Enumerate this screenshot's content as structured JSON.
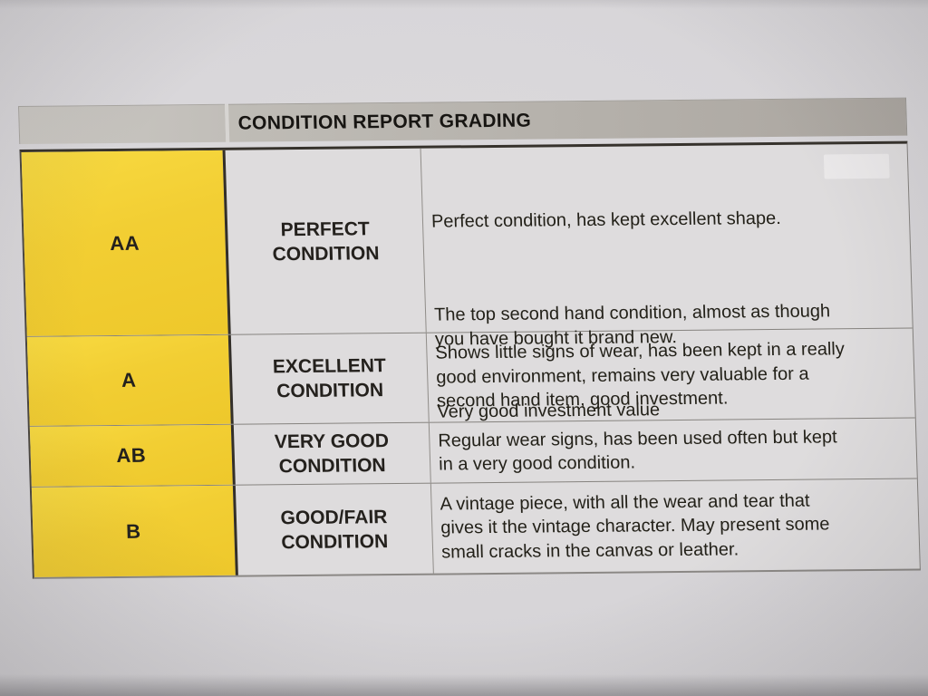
{
  "header": {
    "title": "CONDITION REPORT GRADING"
  },
  "table": {
    "rows": [
      {
        "grade": "AA",
        "label": "PERFECT\nCONDITION",
        "paragraphs": [
          "Perfect condition, has kept excellent shape.",
          "The top second hand condition, almost as though\nyou have bought it brand new.",
          "Very good investment value"
        ]
      },
      {
        "grade": "A",
        "label": "EXCELLENT\nCONDITION",
        "paragraphs": [
          "Shows little signs of wear, has been kept in a really\ngood environment, remains very valuable for a\nsecond hand item, good investment."
        ]
      },
      {
        "grade": "AB",
        "label": "VERY GOOD\nCONDITION",
        "paragraphs": [
          "Regular wear signs, has been used often but kept\nin a very good condition."
        ]
      },
      {
        "grade": "B",
        "label": "GOOD/FAIR\nCONDITION",
        "paragraphs": [
          "A vintage piece, with all the wear and tear that\ngives it the vintage character. May present some\nsmall cracks in the canvas or leather."
        ]
      }
    ]
  },
  "colors": {
    "grade_column_yellow": "#F2CE33",
    "header_band_gray": "#B2ADA7",
    "cell_background": "#DEDCDD",
    "paper_background": "#D6D4D7",
    "text": "#232119"
  }
}
